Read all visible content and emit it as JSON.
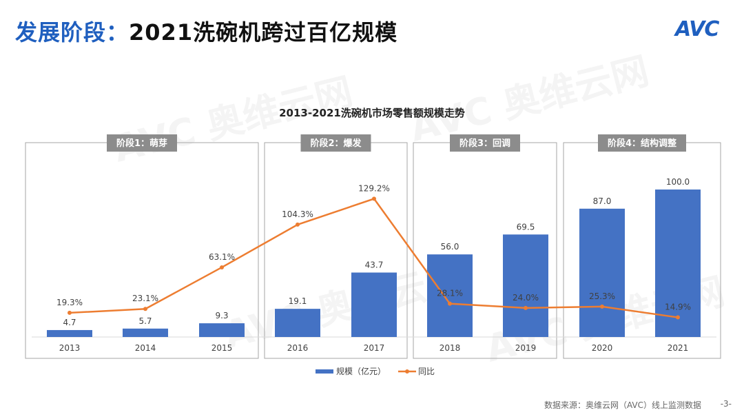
{
  "header": {
    "title_prefix": "发展阶段：",
    "title_main": "2021洗碗机跨过百亿规模",
    "logo_text": "AVC"
  },
  "footer": {
    "source": "数据来源：奥维云网（AVC）线上监测数据",
    "page": "-3-"
  },
  "colors": {
    "bar": "#4472c4",
    "line": "#ed7d31",
    "title_accent": "#1f5fbf",
    "stage_label_bg": "#8c8c8c"
  },
  "stages": [
    {
      "label": "阶段1：萌芽"
    },
    {
      "label": "阶段2：爆发"
    },
    {
      "label": "阶段3：回调"
    },
    {
      "label": "阶段4：结构调整"
    }
  ],
  "chart_data": {
    "type": "bar",
    "title": "2013-2021洗碗机市场零售额规模走势",
    "categories": [
      "2013",
      "2014",
      "2015",
      "2016",
      "2017",
      "2018",
      "2019",
      "2020",
      "2021"
    ],
    "series": [
      {
        "name": "规模（亿元）",
        "type": "bar",
        "values": [
          4.7,
          5.7,
          9.3,
          19.1,
          43.7,
          56.0,
          69.5,
          87.0,
          100.0
        ],
        "labels": [
          "4.7",
          "5.7",
          "9.3",
          "19.1",
          "43.7",
          "56.0",
          "69.5",
          "87.0",
          "100.0"
        ]
      },
      {
        "name": "同比",
        "type": "line",
        "values": [
          19.3,
          23.1,
          63.1,
          104.3,
          129.2,
          28.1,
          24.0,
          25.3,
          14.9
        ],
        "labels": [
          "19.3%",
          "23.1%",
          "63.1%",
          "104.3%",
          "129.2%",
          "28.1%",
          "24.0%",
          "25.3%",
          "14.9%"
        ]
      }
    ],
    "legend_position": "bottom"
  }
}
